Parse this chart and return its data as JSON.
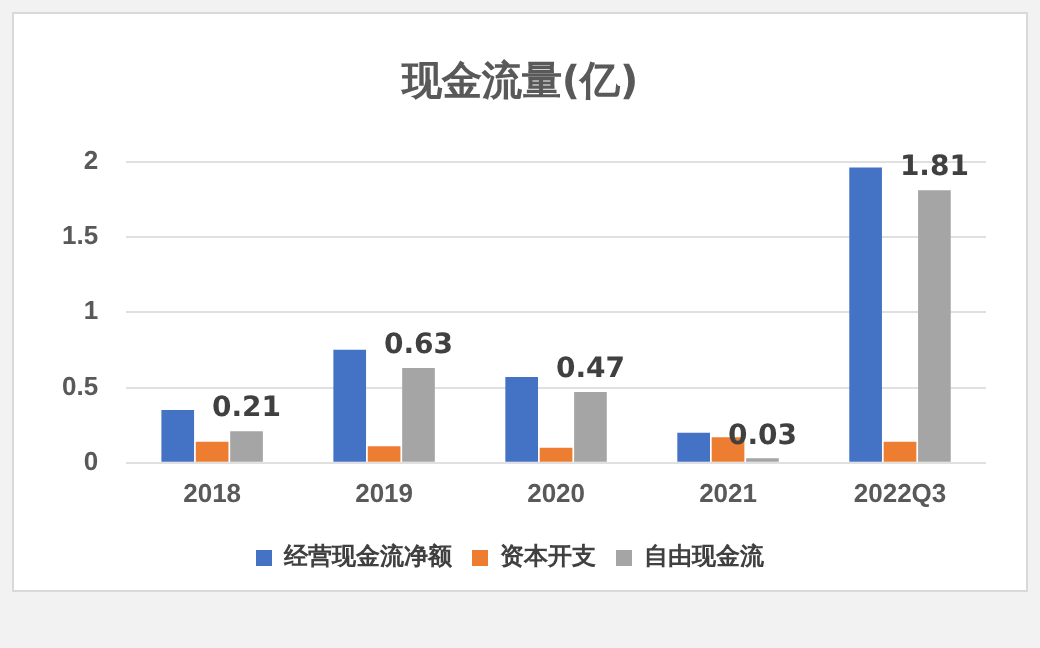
{
  "chart_data": {
    "type": "bar",
    "title": "现金流量(亿)",
    "categories": [
      "2018",
      "2019",
      "2020",
      "2021",
      "2022Q3"
    ],
    "series": [
      {
        "name": "经营现金流净额",
        "color": "#4472c4",
        "values": [
          0.35,
          0.75,
          0.57,
          0.2,
          1.96
        ]
      },
      {
        "name": "资本开支",
        "color": "#ed7d31",
        "values": [
          0.14,
          0.11,
          0.1,
          0.17,
          0.14
        ]
      },
      {
        "name": "自由现金流",
        "color": "#a5a5a5",
        "values": [
          0.21,
          0.63,
          0.47,
          0.03,
          1.81
        ],
        "value_labels": [
          "0.21",
          "0.63",
          "0.47",
          "0.03",
          "1.81"
        ]
      }
    ],
    "ylim": [
      0,
      2
    ],
    "yticks": [
      0,
      0.5,
      1,
      1.5,
      2
    ],
    "grid": "y",
    "legend": "bottom"
  }
}
